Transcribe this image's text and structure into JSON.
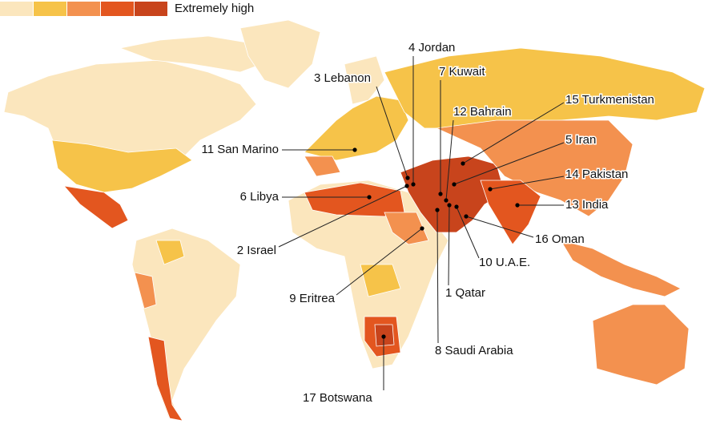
{
  "legend": {
    "label": "Extremely high",
    "colors": [
      "#fbe6bd",
      "#f6c349",
      "#f3914f",
      "#e3561f",
      "#c8441c"
    ]
  },
  "labels": [
    "4 Jordan",
    "7 Kuwait",
    "3 Lebanon",
    "12 Bahrain",
    "15 Turkmenistan",
    "11 San Marino",
    "5 Iran",
    "14 Pakistan",
    "6 Libya",
    "13 India",
    "16 Oman",
    "2 Israel",
    "10 U.A.E.",
    "9 Eritrea",
    "1 Qatar",
    "8 Saudi Arabia",
    "17 Botswana"
  ]
}
